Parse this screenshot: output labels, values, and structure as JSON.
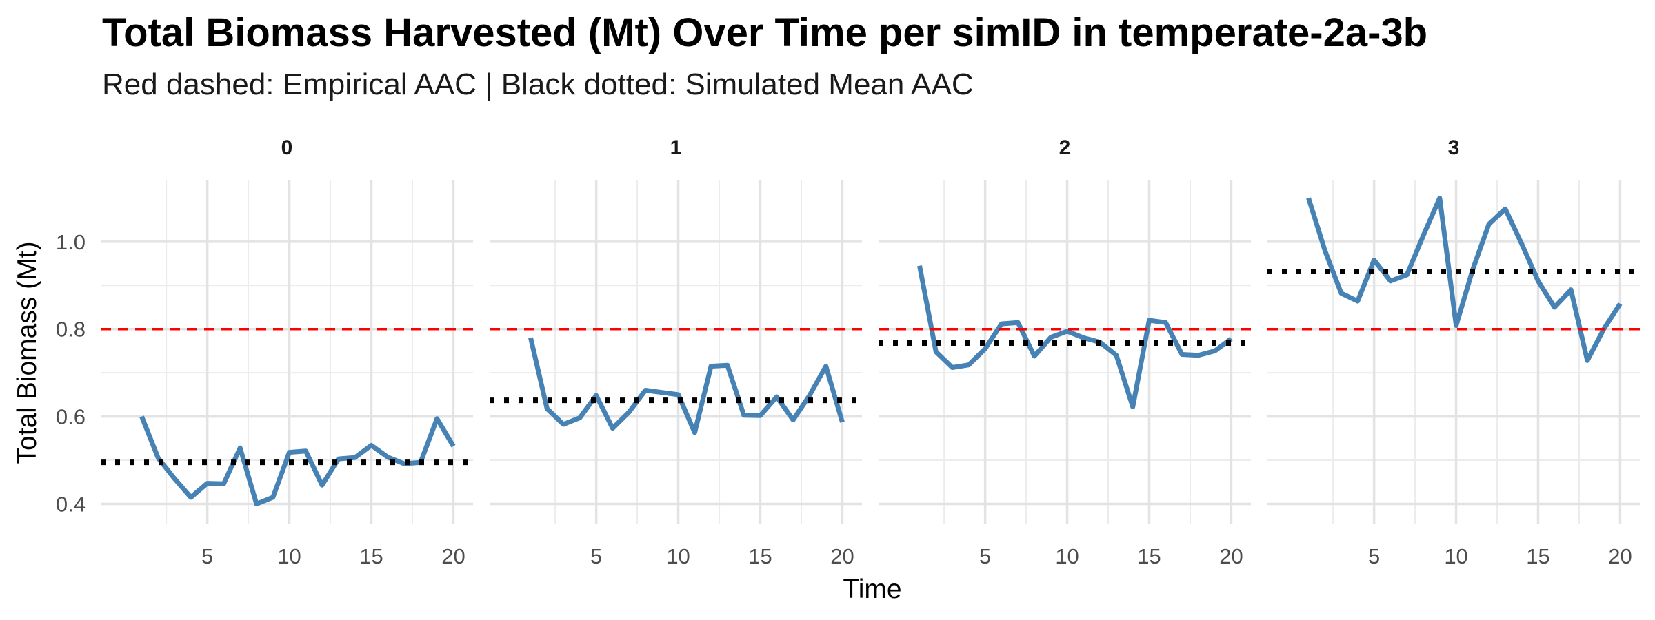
{
  "chart_data": {
    "type": "line",
    "title": "Total Biomass Harvested (Mt) Over Time per simID  in temperate-2a-3b",
    "subtitle": "Red dashed: Empirical AAC | Black dotted: Simulated Mean AAC",
    "xlabel": "Time",
    "ylabel": "Total Biomass (Mt)",
    "xlim": [
      -1.5,
      21.2
    ],
    "ylim": [
      0.355,
      1.14
    ],
    "x_ticks": [
      5,
      10,
      15,
      20
    ],
    "y_ticks": [
      0.4,
      0.6,
      0.8,
      1.0
    ],
    "y_tick_labels": [
      "0.4",
      "0.6",
      "0.8",
      "1.0"
    ],
    "grid": true,
    "empirical_aac": 0.8,
    "line_color": "#4682B4",
    "empirical_color": "#FF0000",
    "mean_color": "#000000",
    "x": [
      1,
      2,
      3,
      4,
      5,
      6,
      7,
      8,
      9,
      10,
      11,
      12,
      13,
      14,
      15,
      16,
      17,
      18,
      19,
      20
    ],
    "facets": [
      {
        "label": "0",
        "simulated_mean_aac": 0.495,
        "values": [
          0.6,
          0.505,
          0.458,
          0.415,
          0.447,
          0.446,
          0.528,
          0.4,
          0.415,
          0.518,
          0.521,
          0.443,
          0.503,
          0.506,
          0.534,
          0.507,
          0.492,
          0.495,
          0.595,
          0.532
        ]
      },
      {
        "label": "1",
        "simulated_mean_aac": 0.637,
        "values": [
          0.78,
          0.618,
          0.582,
          0.597,
          0.648,
          0.573,
          0.61,
          0.66,
          0.655,
          0.65,
          0.563,
          0.715,
          0.717,
          0.603,
          0.602,
          0.645,
          0.592,
          0.648,
          0.715,
          0.587
        ]
      },
      {
        "label": "2",
        "simulated_mean_aac": 0.768,
        "values": [
          0.945,
          0.748,
          0.712,
          0.718,
          0.755,
          0.812,
          0.815,
          0.738,
          0.781,
          0.795,
          0.78,
          0.77,
          0.74,
          0.622,
          0.82,
          0.815,
          0.742,
          0.74,
          0.75,
          0.778
        ]
      },
      {
        "label": "3",
        "simulated_mean_aac": 0.932,
        "values": [
          1.1,
          0.98,
          0.882,
          0.864,
          0.958,
          0.91,
          0.924,
          1.014,
          1.1,
          0.808,
          0.935,
          1.04,
          1.075,
          0.995,
          0.91,
          0.85,
          0.89,
          0.728,
          0.8,
          0.858
        ]
      }
    ]
  }
}
